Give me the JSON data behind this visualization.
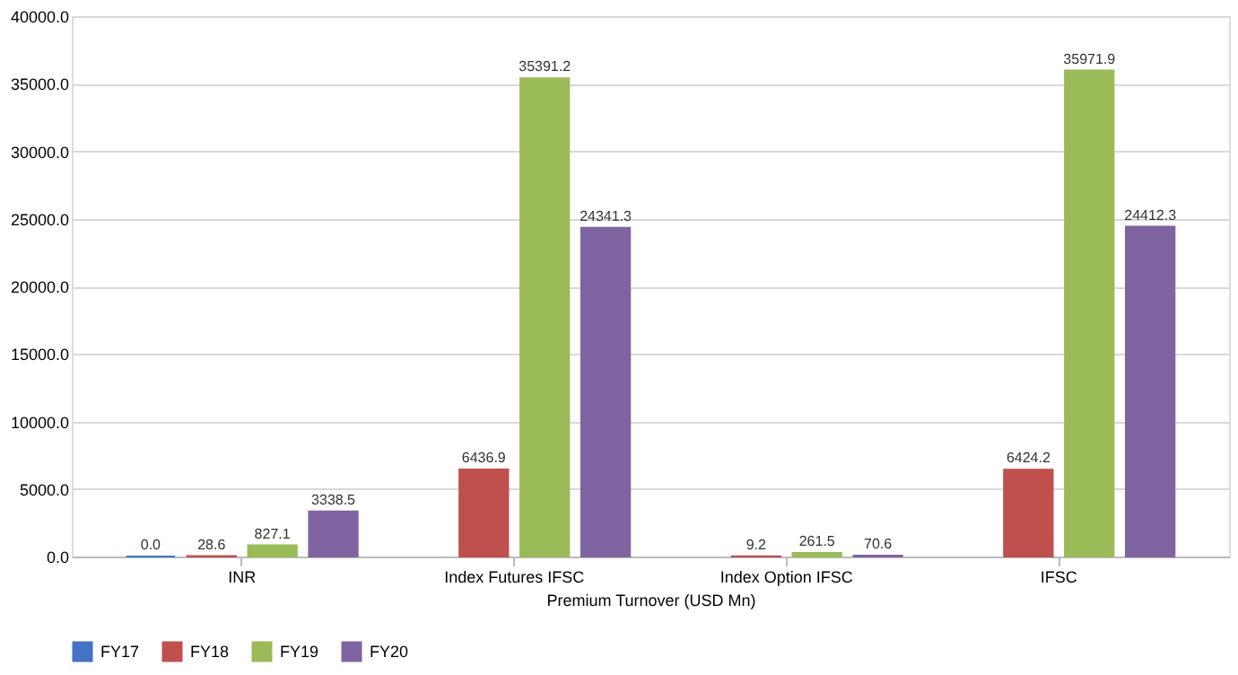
{
  "chart_data": {
    "type": "bar",
    "xlabel": "Premium Turnover (USD Mn)",
    "categories": [
      "INR",
      "Index Futures IFSC",
      "Index Option IFSC",
      "IFSC"
    ],
    "series": [
      {
        "name": "FY17",
        "color": "#4472c4",
        "values": [
          0.0,
          null,
          null,
          null
        ],
        "value_labels": [
          "0.0",
          null,
          null,
          null
        ]
      },
      {
        "name": "FY18",
        "color": "#c0504d",
        "values": [
          28.6,
          6436.9,
          9.2,
          6424.2
        ],
        "value_labels": [
          "28.6",
          "6436.9",
          "9.2",
          "6424.2"
        ]
      },
      {
        "name": "FY19",
        "color": "#9bbb59",
        "values": [
          827.1,
          35391.2,
          261.5,
          35971.9
        ],
        "value_labels": [
          "827.1",
          "35391.2",
          "261.5",
          "35971.9"
        ]
      },
      {
        "name": "FY20",
        "color": "#8064a2",
        "values": [
          3338.5,
          24341.3,
          70.6,
          24412.3
        ],
        "value_labels": [
          "3338.5",
          "24341.3",
          "70.6",
          "24412.3"
        ]
      }
    ],
    "ylim": [
      0,
      40000
    ],
    "yticks": [
      {
        "value": 0,
        "label": "0.0"
      },
      {
        "value": 5000,
        "label": "5000.0"
      },
      {
        "value": 10000,
        "label": "10000.0"
      },
      {
        "value": 15000,
        "label": "15000.0"
      },
      {
        "value": 20000,
        "label": "20000.0"
      },
      {
        "value": 25000,
        "label": "25000.0"
      },
      {
        "value": 30000,
        "label": "30000.0"
      },
      {
        "value": 35000,
        "label": "35000.0"
      },
      {
        "value": 40000,
        "label": "40000.0"
      }
    ],
    "grid": "y",
    "legend": "bottom"
  }
}
